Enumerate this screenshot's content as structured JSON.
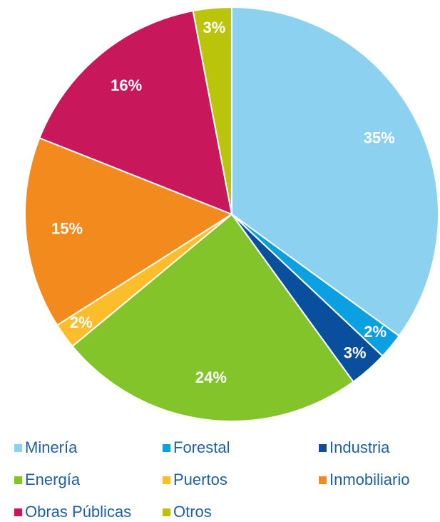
{
  "chart_data": {
    "type": "pie",
    "categories": [
      "Minería",
      "Forestal",
      "Industria",
      "Energía",
      "Puertos",
      "Inmobiliario",
      "Obras Públicas",
      "Otros"
    ],
    "values": [
      35,
      2,
      3,
      24,
      2,
      15,
      16,
      3
    ],
    "value_labels": [
      "35%",
      "2%",
      "3%",
      "24%",
      "2%",
      "15%",
      "16%",
      "3%"
    ],
    "colors": [
      "#8dd1f1",
      "#0aa0e2",
      "#0a4f9e",
      "#84c42b",
      "#fbbd2a",
      "#f28a1e",
      "#c8175b",
      "#b9c40a"
    ],
    "legend": "bottom"
  }
}
